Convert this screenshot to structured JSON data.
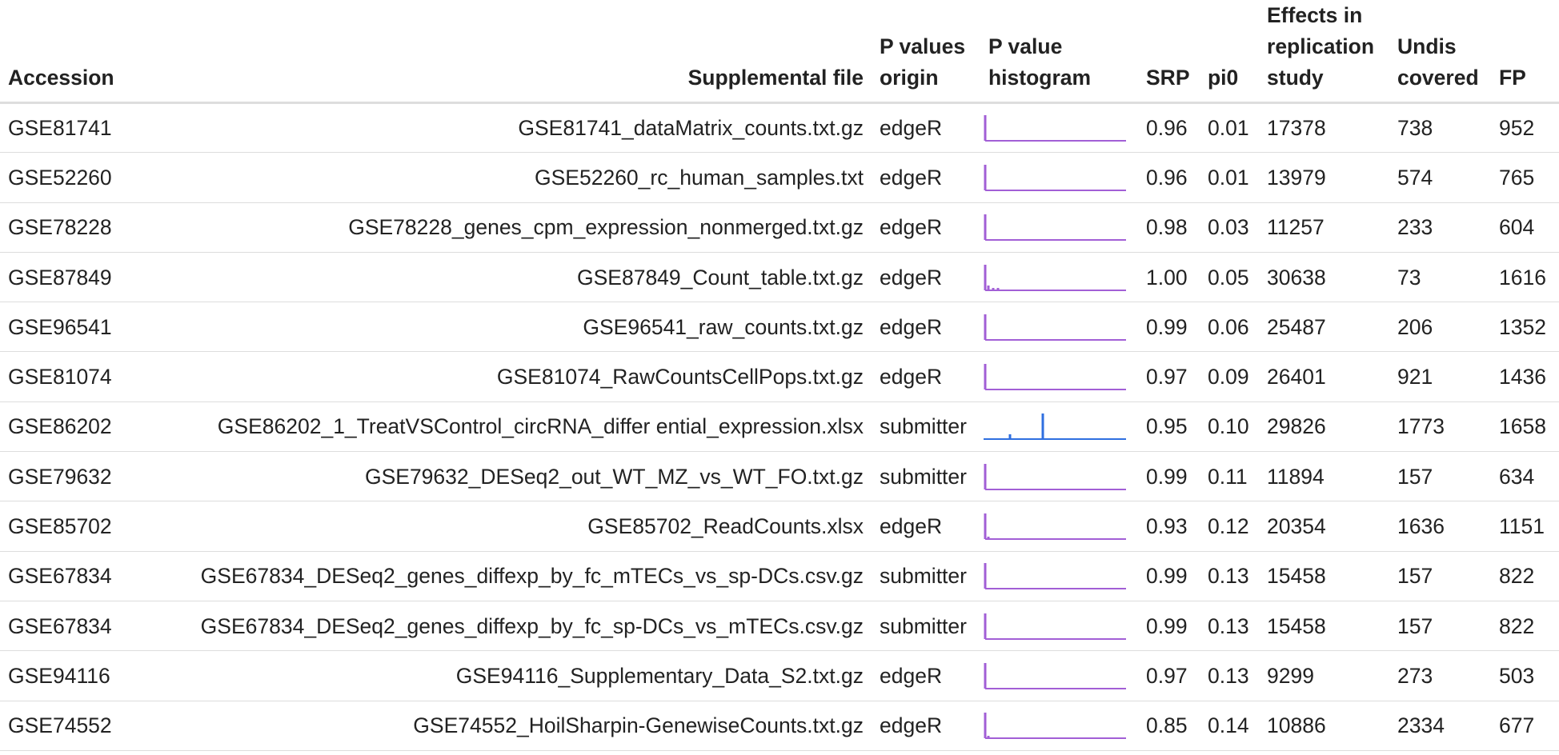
{
  "table": {
    "headers": {
      "accession": "Accession",
      "supplemental_file": "Supplemental file",
      "p_values_origin": "P values origin",
      "p_value_histogram": "P value histogram",
      "srp": "SRP",
      "pi0": "pi0",
      "effects_in_replication_study": "Effects in replication study",
      "undiscovered": "Undis covered",
      "fp": "FP"
    },
    "rows": [
      {
        "accession": "GSE81741",
        "file": "GSE81741_dataMatrix_counts.txt.gz",
        "origin": "edgeR",
        "srp": "0.96",
        "pi0": "0.01",
        "effects": "17378",
        "undiscovered": "738",
        "fp": "952",
        "hist": "spike-left"
      },
      {
        "accession": "GSE52260",
        "file": "GSE52260_rc_human_samples.txt",
        "origin": "edgeR",
        "srp": "0.96",
        "pi0": "0.01",
        "effects": "13979",
        "undiscovered": "574",
        "fp": "765",
        "hist": "spike-left"
      },
      {
        "accession": "GSE78228",
        "file": "GSE78228_genes_cpm_expression_nonmerged.txt.gz",
        "origin": "edgeR",
        "srp": "0.98",
        "pi0": "0.03",
        "effects": "11257",
        "undiscovered": "233",
        "fp": "604",
        "hist": "spike-left"
      },
      {
        "accession": "GSE87849",
        "file": "GSE87849_Count_table.txt.gz",
        "origin": "edgeR",
        "srp": "1.00",
        "pi0": "0.05",
        "effects": "30638",
        "undiscovered": "73",
        "fp": "1616",
        "hist": "spike-left-wide"
      },
      {
        "accession": "GSE96541",
        "file": "GSE96541_raw_counts.txt.gz",
        "origin": "edgeR",
        "srp": "0.99",
        "pi0": "0.06",
        "effects": "25487",
        "undiscovered": "206",
        "fp": "1352",
        "hist": "spike-left"
      },
      {
        "accession": "GSE81074",
        "file": "GSE81074_RawCountsCellPops.txt.gz",
        "origin": "edgeR",
        "srp": "0.97",
        "pi0": "0.09",
        "effects": "26401",
        "undiscovered": "921",
        "fp": "1436",
        "hist": "spike-left"
      },
      {
        "accession": "GSE86202",
        "file": "GSE86202_1_TreatVSControl_circRNA_differ ential_expression.xlsx",
        "origin": "submitter",
        "srp": "0.95",
        "pi0": "0.10",
        "effects": "29826",
        "undiscovered": "1773",
        "fp": "1658",
        "hist": "blue-spikes"
      },
      {
        "accession": "GSE79632",
        "file": "GSE79632_DESeq2_out_WT_MZ_vs_WT_FO.txt.gz",
        "origin": "submitter",
        "srp": "0.99",
        "pi0": "0.11",
        "effects": "11894",
        "undiscovered": "157",
        "fp": "634",
        "hist": "spike-left"
      },
      {
        "accession": "GSE85702",
        "file": "GSE85702_ReadCounts.xlsx",
        "origin": "edgeR",
        "srp": "0.93",
        "pi0": "0.12",
        "effects": "20354",
        "undiscovered": "1636",
        "fp": "1151",
        "hist": "spike-left-small"
      },
      {
        "accession": "GSE67834",
        "file": "GSE67834_DESeq2_genes_diffexp_by_fc_mTECs_vs_sp-DCs.csv.gz",
        "origin": "submitter",
        "srp": "0.99",
        "pi0": "0.13",
        "effects": "15458",
        "undiscovered": "157",
        "fp": "822",
        "hist": "spike-left"
      },
      {
        "accession": "GSE67834",
        "file": "GSE67834_DESeq2_genes_diffexp_by_fc_sp-DCs_vs_mTECs.csv.gz",
        "origin": "submitter",
        "srp": "0.99",
        "pi0": "0.13",
        "effects": "15458",
        "undiscovered": "157",
        "fp": "822",
        "hist": "spike-left"
      },
      {
        "accession": "GSE94116",
        "file": "GSE94116_Supplementary_Data_S2.txt.gz",
        "origin": "edgeR",
        "srp": "0.97",
        "pi0": "0.13",
        "effects": "9299",
        "undiscovered": "273",
        "fp": "503",
        "hist": "spike-left"
      },
      {
        "accession": "GSE74552",
        "file": "GSE74552_HoilSharpin-GenewiseCounts.txt.gz",
        "origin": "edgeR",
        "srp": "0.85",
        "pi0": "0.14",
        "effects": "10886",
        "undiscovered": "2334",
        "fp": "677",
        "hist": "spike-left-small"
      }
    ]
  },
  "colors": {
    "histogram_purple": "#a25fd6",
    "histogram_blue": "#2f6fe0",
    "rule": "#dddddd",
    "text": "#222222"
  }
}
